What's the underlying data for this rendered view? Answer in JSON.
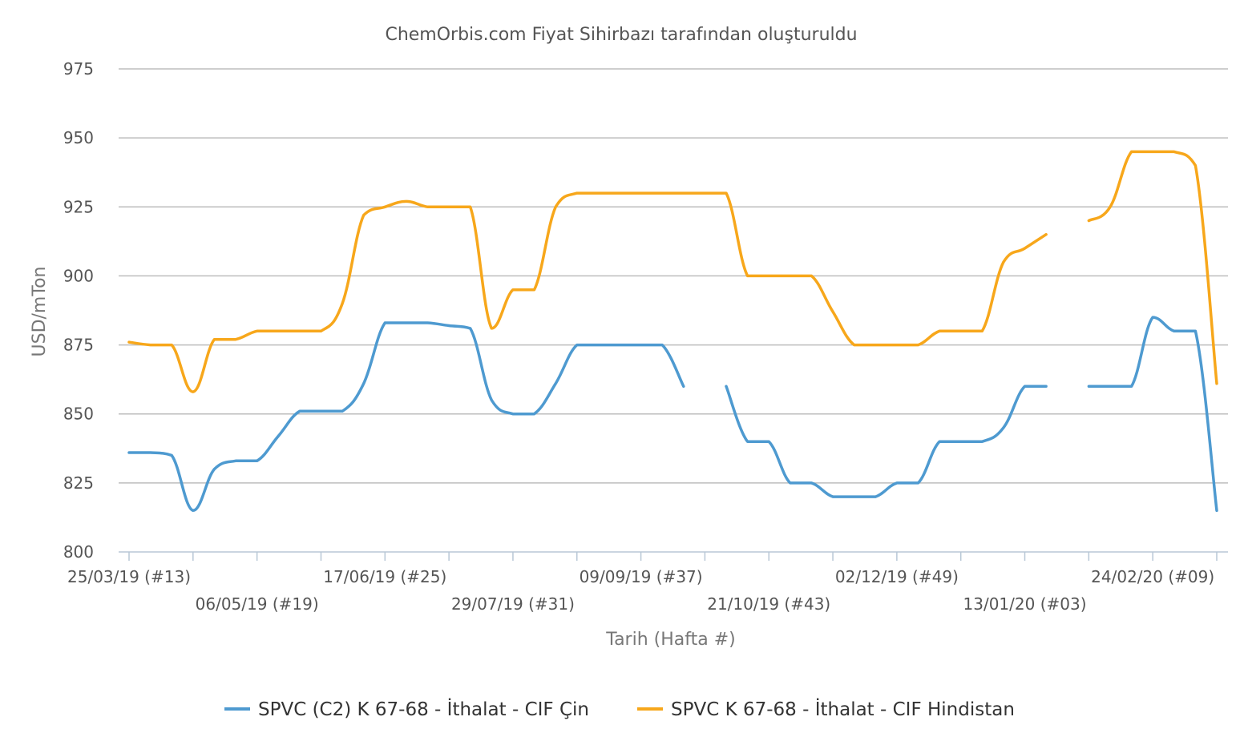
{
  "chart_data": {
    "type": "line",
    "title": "ChemOrbis.com Fiyat Sihirbazı tarafından oluşturuldu",
    "xlabel": "Tarih (Hafta #)",
    "ylabel": "USD/mTon",
    "ylim": [
      800,
      975
    ],
    "yticks": [
      "800",
      "825",
      "850",
      "875",
      "900",
      "925",
      "950",
      "975"
    ],
    "grid": true,
    "legend_position": "bottom",
    "x_ticks": [
      {
        "week": 0,
        "label": "25/03/19 (#13)"
      },
      {
        "week": 6,
        "label": "06/05/19 (#19)"
      },
      {
        "week": 12,
        "label": "17/06/19 (#25)"
      },
      {
        "week": 18,
        "label": "29/07/19 (#31)"
      },
      {
        "week": 24,
        "label": "09/09/19 (#37)"
      },
      {
        "week": 30,
        "label": "21/10/19 (#43)"
      },
      {
        "week": 36,
        "label": "02/12/19 (#49)"
      },
      {
        "week": 42,
        "label": "13/01/20 (#03)"
      },
      {
        "week": 48,
        "label": "24/02/20 (#09)"
      }
    ],
    "x_range": [
      0,
      51
    ],
    "series": [
      {
        "name": "SPVC (C2) K 67-68 - İthalat - CIF Çin",
        "color": "#4e9ad0",
        "points": [
          [
            0,
            836
          ],
          [
            1,
            836
          ],
          [
            2,
            835
          ],
          [
            3,
            815
          ],
          [
            4,
            830
          ],
          [
            5,
            833
          ],
          [
            6,
            833
          ],
          [
            7,
            842
          ],
          [
            8,
            851
          ],
          [
            9,
            851
          ],
          [
            10,
            851
          ],
          [
            11,
            861
          ],
          [
            12,
            883
          ],
          [
            13,
            883
          ],
          [
            14,
            883
          ],
          [
            15,
            882
          ],
          [
            16,
            881
          ],
          [
            17,
            855
          ],
          [
            18,
            850
          ],
          [
            19,
            850
          ],
          [
            20,
            861
          ],
          [
            21,
            875
          ],
          [
            22,
            875
          ],
          [
            23,
            875
          ],
          [
            24,
            875
          ],
          [
            25,
            875
          ],
          [
            26,
            860
          ],
          null,
          [
            28,
            860
          ],
          [
            29,
            840
          ],
          [
            30,
            840
          ],
          [
            31,
            825
          ],
          [
            32,
            825
          ],
          [
            33,
            820
          ],
          [
            34,
            820
          ],
          [
            35,
            820
          ],
          [
            36,
            825
          ],
          [
            37,
            825
          ],
          [
            38,
            840
          ],
          [
            39,
            840
          ],
          [
            40,
            840
          ],
          [
            41,
            845
          ],
          [
            42,
            860
          ],
          [
            43,
            860
          ],
          null,
          [
            45,
            860
          ],
          [
            46,
            860
          ],
          [
            47,
            860
          ],
          [
            48,
            885
          ],
          [
            49,
            880
          ],
          [
            50,
            880
          ],
          [
            51,
            815
          ]
        ]
      },
      {
        "name": "SPVC K 67-68 - İthalat - CIF Hindistan",
        "color": "#f7a71b",
        "points": [
          [
            0,
            876
          ],
          [
            1,
            875
          ],
          [
            2,
            875
          ],
          [
            3,
            858
          ],
          [
            4,
            877
          ],
          [
            5,
            877
          ],
          [
            6,
            880
          ],
          [
            7,
            880
          ],
          [
            8,
            880
          ],
          [
            9,
            880
          ],
          [
            10,
            890
          ],
          [
            11,
            922
          ],
          [
            12,
            925
          ],
          [
            13,
            927
          ],
          [
            14,
            925
          ],
          [
            15,
            925
          ],
          [
            16,
            925
          ],
          [
            17,
            881
          ],
          [
            18,
            895
          ],
          [
            19,
            895
          ],
          [
            20,
            925
          ],
          [
            21,
            930
          ],
          [
            22,
            930
          ],
          [
            23,
            930
          ],
          [
            24,
            930
          ],
          [
            25,
            930
          ],
          [
            26,
            930
          ],
          [
            27,
            930
          ],
          [
            28,
            930
          ],
          [
            29,
            900
          ],
          [
            30,
            900
          ],
          [
            31,
            900
          ],
          [
            32,
            900
          ],
          [
            33,
            887
          ],
          [
            34,
            875
          ],
          [
            35,
            875
          ],
          [
            36,
            875
          ],
          [
            37,
            875
          ],
          [
            38,
            880
          ],
          [
            39,
            880
          ],
          [
            40,
            880
          ],
          [
            41,
            905
          ],
          [
            42,
            910
          ],
          [
            43,
            915
          ],
          null,
          [
            45,
            920
          ],
          [
            46,
            925
          ],
          [
            47,
            945
          ],
          [
            48,
            945
          ],
          [
            49,
            945
          ],
          [
            50,
            940
          ],
          [
            51,
            861
          ]
        ]
      }
    ]
  }
}
